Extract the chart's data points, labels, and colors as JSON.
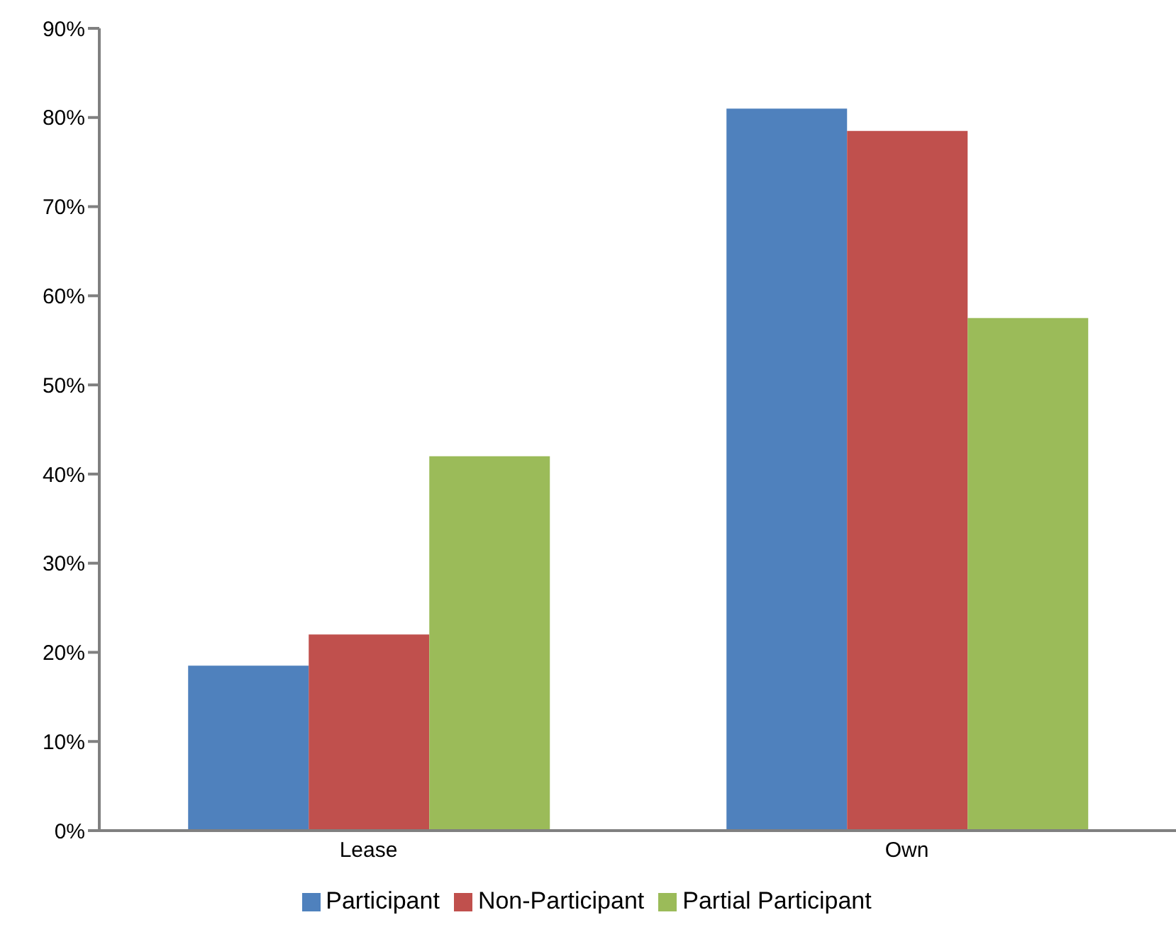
{
  "chart_data": {
    "type": "bar",
    "categories": [
      "Lease",
      "Own"
    ],
    "series": [
      {
        "name": "Participant",
        "color": "#4f81bd",
        "values": [
          18.5,
          81
        ]
      },
      {
        "name": "Non-Participant",
        "color": "#c0504d",
        "values": [
          22,
          78.5
        ]
      },
      {
        "name": "Partial Participant",
        "color": "#9bbb59",
        "values": [
          42,
          57.5
        ]
      }
    ],
    "ylim": [
      0,
      90
    ],
    "yticks": [
      {
        "value": 0,
        "label": "0%"
      },
      {
        "value": 10,
        "label": "10%"
      },
      {
        "value": 20,
        "label": "20%"
      },
      {
        "value": 30,
        "label": "30%"
      },
      {
        "value": 40,
        "label": "40%"
      },
      {
        "value": 50,
        "label": "50%"
      },
      {
        "value": 60,
        "label": "60%"
      },
      {
        "value": 70,
        "label": "70%"
      },
      {
        "value": 80,
        "label": "80%"
      },
      {
        "value": 90,
        "label": "90%"
      }
    ],
    "grid": false,
    "legend": "bottom"
  }
}
